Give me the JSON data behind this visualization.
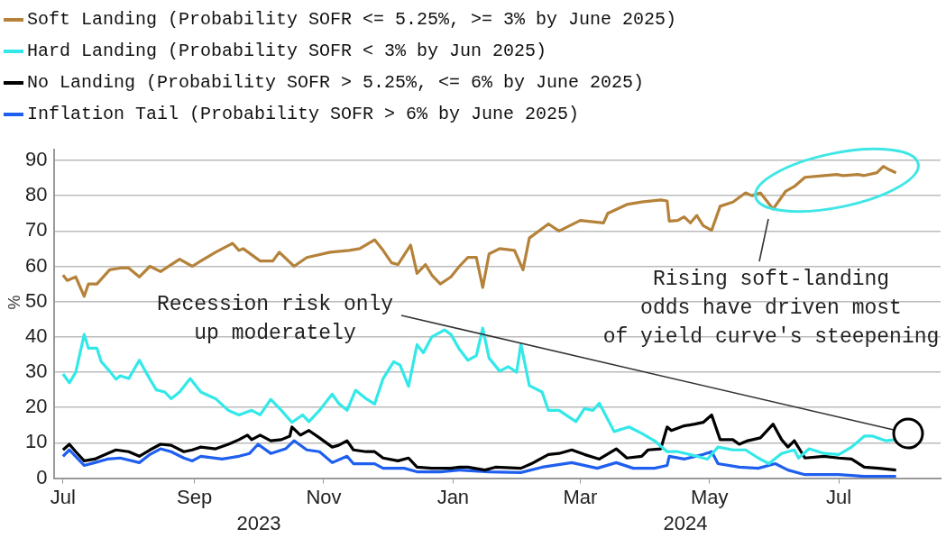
{
  "chart_data": {
    "type": "line",
    "ylabel": "%",
    "xlim": [
      "2023-06-27",
      "2024-08-18"
    ],
    "xticks": [
      {
        "value": "2023-07-01",
        "label": "Jul"
      },
      {
        "value": "2023-09-01",
        "label": "Sep"
      },
      {
        "value": "2023-11-01",
        "label": "Nov"
      },
      {
        "value": "2024-01-01",
        "label": "Jan"
      },
      {
        "value": "2024-03-01",
        "label": "Mar"
      },
      {
        "value": "2024-05-01",
        "label": "May"
      },
      {
        "value": "2024-07-01",
        "label": "Jul"
      }
    ],
    "ylim": [
      0,
      93
    ],
    "yticks": [
      0,
      10,
      20,
      30,
      40,
      50,
      60,
      70,
      80,
      90
    ],
    "grid": "y",
    "legend": "top left",
    "series": [
      {
        "name": "Soft Landing (Probability SOFR <= 5.25%, >= 3% by June 2025)",
        "color": "#b5823a",
        "x": [
          "2023-07-01",
          "2023-07-03",
          "2023-07-07",
          "2023-07-11",
          "2023-07-13",
          "2023-07-17",
          "2023-07-23",
          "2023-07-28",
          "2023-08-01",
          "2023-08-06",
          "2023-08-11",
          "2023-08-16",
          "2023-08-25",
          "2023-08-31",
          "2023-09-04",
          "2023-09-11",
          "2023-09-19",
          "2023-09-22",
          "2023-09-24",
          "2023-10-02",
          "2023-10-08",
          "2023-10-11",
          "2023-10-18",
          "2023-10-24",
          "2023-11-04",
          "2023-11-13",
          "2023-11-18",
          "2023-11-25",
          "2023-11-29",
          "2023-12-03",
          "2023-12-06",
          "2023-12-12",
          "2023-12-15",
          "2023-12-19",
          "2023-12-22",
          "2023-12-26",
          "2023-12-31",
          "2024-01-04",
          "2024-01-08",
          "2024-01-12",
          "2024-01-15",
          "2024-01-18",
          "2024-01-23",
          "2024-01-30",
          "2024-02-03",
          "2024-02-06",
          "2024-02-15",
          "2024-02-20",
          "2024-03-01",
          "2024-03-12",
          "2024-03-14",
          "2024-03-23",
          "2024-03-30",
          "2024-04-08",
          "2024-04-11",
          "2024-04-12",
          "2024-04-16",
          "2024-04-19",
          "2024-04-22",
          "2024-04-25",
          "2024-04-28",
          "2024-05-02",
          "2024-05-06",
          "2024-05-12",
          "2024-05-18",
          "2024-05-21",
          "2024-05-25",
          "2024-05-31",
          "2024-06-06",
          "2024-06-10",
          "2024-06-15",
          "2024-06-24",
          "2024-06-30",
          "2024-07-03",
          "2024-07-10",
          "2024-07-13",
          "2024-07-19",
          "2024-07-22",
          "2024-07-25",
          "2024-07-28"
        ],
        "values": [
          57.5,
          56,
          57,
          51.5,
          55,
          55,
          59,
          59.5,
          59.5,
          57,
          60,
          58.5,
          62,
          60,
          61.5,
          64,
          66.5,
          64.5,
          65,
          61.5,
          61.5,
          64,
          60,
          62.5,
          64,
          64.5,
          65,
          67.5,
          64.5,
          61,
          60.5,
          66,
          58,
          60.5,
          57.5,
          55,
          57,
          60,
          62.5,
          62.5,
          54,
          63.5,
          65,
          64.5,
          59,
          68,
          72,
          70,
          73,
          72.3,
          75,
          77.5,
          78.2,
          78.8,
          78.5,
          72.8,
          73,
          74,
          72.3,
          74.4,
          71.5,
          70.2,
          77,
          78.2,
          80.8,
          80,
          80.8,
          76.2,
          81.3,
          82.6,
          85.2,
          85.7,
          86,
          85.7,
          86,
          85.7,
          86.5,
          88.3,
          87.3,
          86.5
        ]
      },
      {
        "name": "Hard Landing (Probability SOFR < 3% by Jun 2025)",
        "color": "#33e8e8",
        "x": [
          "2023-07-01",
          "2023-07-04",
          "2023-07-07",
          "2023-07-11",
          "2023-07-13",
          "2023-07-17",
          "2023-07-19",
          "2023-07-23",
          "2023-07-26",
          "2023-07-28",
          "2023-08-01",
          "2023-08-06",
          "2023-08-11",
          "2023-08-14",
          "2023-08-18",
          "2023-08-21",
          "2023-08-25",
          "2023-08-30",
          "2023-09-04",
          "2023-09-11",
          "2023-09-17",
          "2023-09-22",
          "2023-09-28",
          "2023-10-02",
          "2023-10-07",
          "2023-10-12",
          "2023-10-17",
          "2023-10-22",
          "2023-10-25",
          "2023-10-30",
          "2023-11-05",
          "2023-11-08",
          "2023-11-12",
          "2023-11-16",
          "2023-11-21",
          "2023-11-25",
          "2023-11-29",
          "2023-12-04",
          "2023-12-07",
          "2023-12-11",
          "2023-12-15",
          "2023-12-18",
          "2023-12-22",
          "2023-12-28",
          "2023-12-31",
          "2024-01-04",
          "2024-01-08",
          "2024-01-12",
          "2024-01-15",
          "2024-01-18",
          "2024-01-23",
          "2024-01-27",
          "2024-01-31",
          "2024-02-02",
          "2024-02-06",
          "2024-02-12",
          "2024-02-15",
          "2024-02-20",
          "2024-02-28",
          "2024-03-03",
          "2024-03-07",
          "2024-03-10",
          "2024-03-17",
          "2024-03-24",
          "2024-03-30",
          "2024-04-05",
          "2024-04-11",
          "2024-04-16",
          "2024-04-25",
          "2024-04-30",
          "2024-05-05",
          "2024-05-12",
          "2024-05-18",
          "2024-05-24",
          "2024-05-29",
          "2024-06-04",
          "2024-06-10",
          "2024-06-12",
          "2024-06-17",
          "2024-06-24",
          "2024-07-01",
          "2024-07-07",
          "2024-07-13",
          "2024-07-17",
          "2024-07-23",
          "2024-07-28"
        ],
        "values": [
          29.5,
          27,
          30,
          40.7,
          36.8,
          36.8,
          33,
          30.3,
          28,
          29,
          28.2,
          33.4,
          28,
          25,
          24.4,
          22.5,
          24.4,
          28.2,
          24.4,
          22.5,
          19.2,
          17.9,
          19.2,
          17.9,
          22.3,
          19.2,
          15.8,
          17.9,
          16,
          19.2,
          23.8,
          21.2,
          19.2,
          24.9,
          22.5,
          21,
          28.2,
          33,
          32,
          26,
          37.8,
          35.5,
          40,
          42,
          40.7,
          36.5,
          33.4,
          34.7,
          42.5,
          34,
          30.3,
          31.6,
          30,
          38,
          26.2,
          24.4,
          19.2,
          19.2,
          16,
          19.7,
          19.2,
          21.2,
          13.2,
          14.5,
          12.7,
          10.6,
          7.5,
          7.5,
          6.2,
          5.4,
          8.8,
          8,
          8,
          5.7,
          4.1,
          7,
          8,
          5.7,
          8.3,
          7,
          6.7,
          8.8,
          11.9,
          11.9,
          10.6,
          10.9
        ]
      },
      {
        "name": "No Landing (Probability SOFR > 5.25%, <= 6% by June 2025)",
        "color": "#000000",
        "x": [
          "2023-07-01",
          "2023-07-04",
          "2023-07-07",
          "2023-07-11",
          "2023-07-16",
          "2023-07-22",
          "2023-07-26",
          "2023-08-01",
          "2023-08-06",
          "2023-08-11",
          "2023-08-16",
          "2023-08-21",
          "2023-08-27",
          "2023-08-31",
          "2023-09-04",
          "2023-09-11",
          "2023-09-17",
          "2023-09-22",
          "2023-09-26",
          "2023-09-28",
          "2023-10-02",
          "2023-10-07",
          "2023-10-12",
          "2023-10-16",
          "2023-10-17",
          "2023-10-21",
          "2023-10-25",
          "2023-10-30",
          "2023-11-05",
          "2023-11-08",
          "2023-11-12",
          "2023-11-15",
          "2023-11-21",
          "2023-11-25",
          "2023-11-29",
          "2023-12-06",
          "2023-12-11",
          "2023-12-15",
          "2023-12-22",
          "2023-12-31",
          "2024-01-04",
          "2024-01-08",
          "2024-01-16",
          "2024-01-21",
          "2024-02-02",
          "2024-02-07",
          "2024-02-15",
          "2024-02-20",
          "2024-02-26",
          "2024-03-03",
          "2024-03-10",
          "2024-03-18",
          "2024-03-23",
          "2024-03-30",
          "2024-04-02",
          "2024-04-08",
          "2024-04-11",
          "2024-04-13",
          "2024-04-19",
          "2024-04-24",
          "2024-04-28",
          "2024-05-02",
          "2024-05-06",
          "2024-05-12",
          "2024-05-15",
          "2024-05-19",
          "2024-05-25",
          "2024-05-31",
          "2024-06-04",
          "2024-06-07",
          "2024-06-10",
          "2024-06-15",
          "2024-06-24",
          "2024-07-01",
          "2024-07-07",
          "2024-07-13",
          "2024-07-20",
          "2024-07-28"
        ],
        "values": [
          8,
          9.6,
          7.5,
          4.9,
          5.4,
          7,
          8,
          7.5,
          6.2,
          8,
          9.6,
          9.3,
          7.5,
          8,
          8.8,
          8.3,
          9.6,
          10.9,
          12.2,
          10.9,
          12.2,
          10.6,
          10.9,
          11.9,
          14.5,
          12.2,
          13.5,
          11.4,
          8.8,
          9.3,
          10.6,
          8,
          7.5,
          7.5,
          5.7,
          4.9,
          5.7,
          3.1,
          2.8,
          2.8,
          3.1,
          3.1,
          2.3,
          3.1,
          2.8,
          4.1,
          6.7,
          7,
          8,
          6.7,
          5.4,
          8.3,
          5.7,
          6.2,
          8,
          8.3,
          14.5,
          13.5,
          14.8,
          15.3,
          15.8,
          17.9,
          10.9,
          10.9,
          9.6,
          10.6,
          11.4,
          15.3,
          10.9,
          8.8,
          10.6,
          5.7,
          6.2,
          5.7,
          5.4,
          3.1,
          2.8,
          2.3
        ]
      },
      {
        "name": "Inflation Tail (Probability SOFR > 6% by June 2025)",
        "color": "#1f5ff0",
        "x": [
          "2023-07-01",
          "2023-07-04",
          "2023-07-11",
          "2023-07-16",
          "2023-07-22",
          "2023-07-28",
          "2023-08-06",
          "2023-08-11",
          "2023-08-16",
          "2023-08-21",
          "2023-08-27",
          "2023-08-31",
          "2023-09-04",
          "2023-09-14",
          "2023-09-22",
          "2023-09-27",
          "2023-10-01",
          "2023-10-07",
          "2023-10-14",
          "2023-10-18",
          "2023-10-24",
          "2023-10-30",
          "2023-11-05",
          "2023-11-12",
          "2023-11-15",
          "2023-11-25",
          "2023-11-29",
          "2023-12-09",
          "2023-12-15",
          "2023-12-26",
          "2024-01-04",
          "2024-01-18",
          "2024-02-02",
          "2024-02-12",
          "2024-02-26",
          "2024-03-09",
          "2024-03-18",
          "2024-03-26",
          "2024-04-05",
          "2024-04-11",
          "2024-04-12",
          "2024-04-19",
          "2024-04-28",
          "2024-05-02",
          "2024-05-05",
          "2024-05-15",
          "2024-05-24",
          "2024-06-01",
          "2024-06-07",
          "2024-06-15",
          "2024-07-01",
          "2024-07-13",
          "2024-07-28"
        ],
        "values": [
          6.2,
          8,
          3.6,
          4.4,
          5.4,
          5.7,
          4.4,
          6.7,
          8.3,
          7.5,
          5.7,
          4.9,
          6.2,
          5.4,
          6.2,
          7,
          9.6,
          7,
          8.3,
          10.6,
          8,
          7.5,
          4.4,
          6.2,
          4.1,
          4.1,
          2.8,
          2.8,
          1.8,
          1.8,
          2.3,
          1.8,
          1.6,
          3.1,
          4.4,
          2.8,
          4.4,
          2.8,
          2.8,
          3.6,
          6.2,
          5.4,
          6.7,
          7.5,
          4.1,
          3.1,
          2.8,
          4.1,
          2.3,
          1,
          1,
          0.5,
          0.5
        ]
      }
    ],
    "annotations": [
      "Recession risk only\nup moderately",
      "Rising soft-landing\nodds have driven most\nof yield curve's steepening",
      "2023",
      "2024"
    ]
  }
}
